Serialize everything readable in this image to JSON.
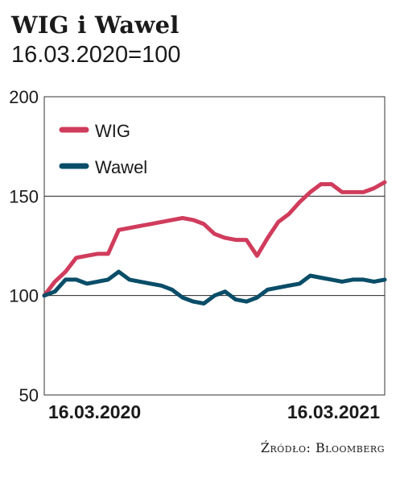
{
  "chart_data": {
    "type": "line",
    "title": "WIG i Wawel",
    "subtitle": "16.03.2020=100",
    "source": "Źródło: Bloomberg",
    "ylim": [
      50,
      200
    ],
    "yticks": [
      "200",
      "150",
      "100",
      "50"
    ],
    "x_labels": [
      "16.03.2020",
      "16.03.2021"
    ],
    "grid": "horizontal",
    "legend_position": "top-left",
    "colors": {
      "WIG": "#d03c5c",
      "Wawel": "#0a4d68"
    },
    "series": [
      {
        "name": "WIG",
        "color": "#d03c5c",
        "values": [
          100,
          107,
          112,
          119,
          120,
          121,
          121,
          133,
          134,
          135,
          136,
          137,
          138,
          139,
          138,
          136,
          131,
          129,
          128,
          128,
          120,
          129,
          137,
          141,
          147,
          152,
          156,
          156,
          152,
          152,
          152,
          154,
          157
        ]
      },
      {
        "name": "Wawel",
        "color": "#0a4d68",
        "values": [
          100,
          102,
          108,
          108,
          106,
          107,
          108,
          112,
          108,
          107,
          106,
          105,
          103,
          99,
          97,
          96,
          100,
          102,
          98,
          97,
          99,
          103,
          104,
          105,
          106,
          110,
          109,
          108,
          107,
          108,
          108,
          107,
          108
        ]
      }
    ]
  }
}
